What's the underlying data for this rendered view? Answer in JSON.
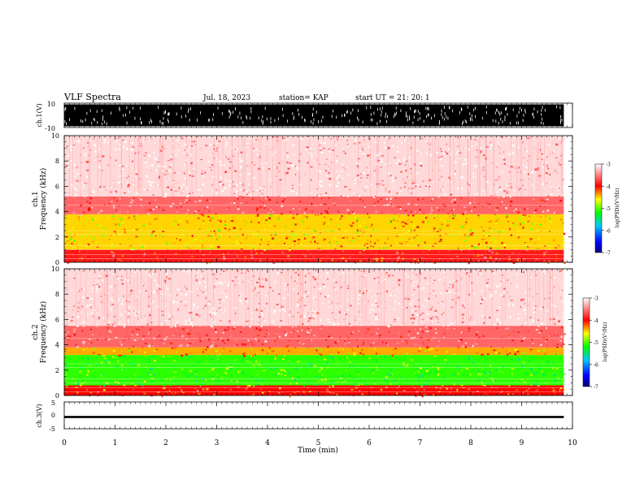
{
  "header": {
    "title": "VLF Spectra",
    "date": "Jul. 18, 2023",
    "station": "station= KAP",
    "start": "start UT = 21: 20: 1"
  },
  "chart_data": [
    {
      "type": "line",
      "panel": "ch1-waveform",
      "ylabel": "ch.1(V)",
      "ylim": [
        -10,
        10
      ],
      "yticks": [
        "10",
        "-10"
      ],
      "description_of_signal": "saturated noise between -10 and 10",
      "xlim": [
        0,
        10
      ]
    },
    {
      "type": "heatmap",
      "panel": "ch1-spectrogram",
      "ylabel": "Frequency (kHz)",
      "channel_label": "ch.1",
      "ylim": [
        0,
        10
      ],
      "yticks": [
        "0",
        "2",
        "4",
        "6",
        "8",
        "10"
      ],
      "xlim": [
        0,
        10
      ],
      "data_xmax": 9.83,
      "colorbar": {
        "label": "log(PSD)(V²/Hz)",
        "range": [
          -7,
          -3
        ],
        "ticks": [
          "-3",
          "-4",
          "-5",
          "-6",
          "-7"
        ]
      },
      "bands": [
        {
          "f_from": 0,
          "f_to": 1.0,
          "level": -3.9
        },
        {
          "f_from": 1.0,
          "f_to": 3.8,
          "level": -4.5
        },
        {
          "f_from": 3.8,
          "f_to": 5.2,
          "level": -3.6
        },
        {
          "f_from": 5.2,
          "f_to": 10,
          "level": -3.15
        }
      ]
    },
    {
      "type": "heatmap",
      "panel": "ch2-spectrogram",
      "ylabel": "Frequency (kHz)",
      "channel_label": "ch.2",
      "ylim": [
        0,
        10
      ],
      "yticks": [
        "0",
        "2",
        "4",
        "6",
        "8",
        "10"
      ],
      "xlim": [
        0,
        10
      ],
      "data_xmax": 9.83,
      "colorbar": {
        "label": "log(PSD)(V²/Hz)",
        "range": [
          -7,
          -3
        ],
        "ticks": [
          "-3",
          "-4",
          "-5",
          "-6",
          "-7"
        ]
      },
      "bands": [
        {
          "f_from": 0,
          "f_to": 0.8,
          "level": -4.0
        },
        {
          "f_from": 0.8,
          "f_to": 3.2,
          "level": -5.1
        },
        {
          "f_from": 3.2,
          "f_to": 3.8,
          "level": -4.4
        },
        {
          "f_from": 3.8,
          "f_to": 5.5,
          "level": -3.6
        },
        {
          "f_from": 5.5,
          "f_to": 10,
          "level": -3.15
        }
      ]
    },
    {
      "type": "line",
      "panel": "ch3-waveform",
      "ylabel": "ch.3(V)",
      "ylim": [
        -5,
        5
      ],
      "yticks": [
        "5",
        "0",
        "-5"
      ],
      "signal_band": [
        -1.0,
        -0.2
      ],
      "xlim": [
        0,
        10
      ],
      "xlabel": "Time (min)",
      "xticks": [
        "0",
        "1",
        "2",
        "3",
        "4",
        "5",
        "6",
        "7",
        "8",
        "9",
        "10"
      ]
    }
  ]
}
